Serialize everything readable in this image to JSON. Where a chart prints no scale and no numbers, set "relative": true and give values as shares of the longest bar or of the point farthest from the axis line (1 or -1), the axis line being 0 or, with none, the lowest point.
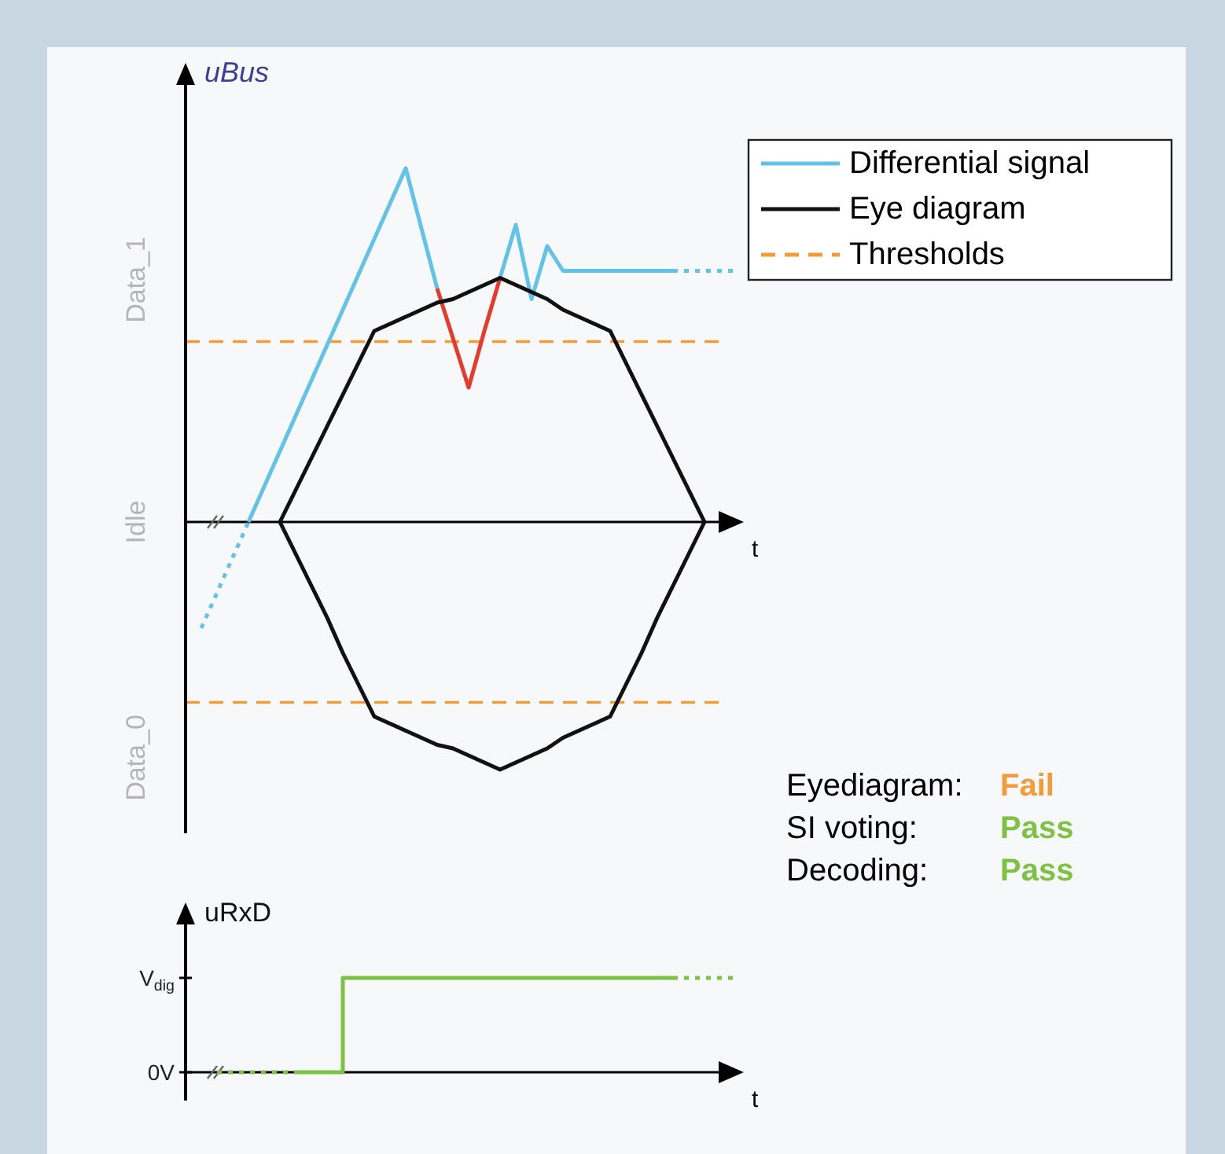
{
  "chart_data": [
    {
      "type": "line",
      "relative": true,
      "ylabel": "uBus",
      "xlabel": "t",
      "legend": "top right",
      "categories": [
        null,
        null,
        null,
        null,
        null,
        null,
        null,
        null,
        null,
        null,
        null,
        null,
        null,
        null,
        null,
        null,
        null,
        null,
        null,
        null,
        null,
        null,
        null,
        null,
        null,
        null,
        null,
        null,
        null,
        null,
        null,
        null,
        null,
        null,
        null,
        null
      ],
      "series": [
        {
          "color": "#62c3ea",
          "line_style": "dotted",
          "values": [
            null,
            -0.3,
            -0.2,
            -0.1,
            0,
            null,
            null,
            null,
            null,
            null,
            null,
            null,
            null,
            null,
            null,
            null,
            null,
            null,
            null,
            null,
            null,
            null,
            null,
            null,
            null,
            null,
            null,
            null,
            null,
            null,
            null,
            null,
            null,
            null,
            null,
            null
          ]
        },
        {
          "name": "Differential signal",
          "color": "#62c3ea",
          "values": [
            null,
            null,
            null,
            null,
            0,
            0.1,
            0.2,
            0.3,
            0.4,
            0.5,
            0.6,
            0.7,
            0.8,
            0.9,
            1,
            0.83,
            0.66,
            null,
            null,
            null,
            null,
            null,
            null,
            null,
            null,
            null,
            null,
            null,
            null,
            null,
            null,
            null,
            null,
            null,
            null,
            null
          ]
        },
        {
          "color": "#e8392b",
          "values": [
            null,
            null,
            null,
            null,
            null,
            null,
            null,
            null,
            null,
            null,
            null,
            null,
            null,
            null,
            null,
            null,
            0.66,
            0.52,
            0.38,
            0.54,
            0.69,
            null,
            null,
            null,
            null,
            null,
            null,
            null,
            null,
            null,
            null,
            null,
            null,
            null,
            null,
            null
          ]
        },
        {
          "color": "#62c3ea",
          "values": [
            null,
            null,
            null,
            null,
            null,
            null,
            null,
            null,
            null,
            null,
            null,
            null,
            null,
            null,
            null,
            null,
            null,
            null,
            null,
            null,
            0.69,
            0.84,
            0.63,
            0.78,
            0.71,
            0.71,
            0.71,
            0.71,
            0.71,
            0.71,
            0.71,
            0.71,
            null,
            null,
            null,
            null
          ]
        },
        {
          "color": "#62c3ea",
          "line_style": "dotted",
          "values": [
            null,
            null,
            null,
            null,
            null,
            null,
            null,
            null,
            null,
            null,
            null,
            null,
            null,
            null,
            null,
            null,
            null,
            null,
            null,
            null,
            null,
            null,
            null,
            null,
            null,
            null,
            null,
            null,
            null,
            null,
            null,
            0.71,
            0.71,
            0.71,
            0.71,
            0.71
          ]
        },
        {
          "name": "Eye diagram",
          "color": "#111111",
          "values": [
            null,
            null,
            null,
            null,
            null,
            null,
            0,
            0.09,
            0.18,
            0.27,
            0.36,
            0.45,
            0.54,
            0.56,
            0.58,
            0.6,
            0.62,
            0.63,
            0.65,
            0.67,
            0.69,
            0.67,
            0.65,
            0.63,
            0.6,
            0.58,
            0.56,
            0.54,
            0.45,
            0.36,
            0.27,
            0.18,
            0.09,
            0,
            null,
            null
          ]
        },
        {
          "color": "#111111",
          "values": [
            null,
            null,
            null,
            null,
            null,
            null,
            0,
            -0.09,
            -0.18,
            -0.27,
            -0.37,
            -0.46,
            -0.55,
            -0.57,
            -0.59,
            -0.61,
            -0.63,
            -0.64,
            -0.66,
            -0.68,
            -0.7,
            -0.68,
            -0.66,
            -0.64,
            -0.61,
            -0.59,
            -0.57,
            -0.55,
            -0.46,
            -0.37,
            -0.27,
            -0.18,
            -0.09,
            0,
            null,
            null
          ]
        }
      ],
      "ref_lines": [
        {
          "axis": "y",
          "value": 0.51,
          "label": "Thresholds",
          "color": "#f29b38",
          "line_style": "dashed"
        },
        {
          "axis": "y",
          "value": -0.51,
          "color": "#f29b38",
          "line_style": "dashed"
        }
      ],
      "annotations": [
        "Data_1",
        "Idle",
        "Data_0"
      ]
    },
    {
      "type": "line",
      "relative": true,
      "ylabel": "uRxD",
      "xlabel": "t",
      "categories": [
        null,
        null,
        null,
        null,
        null,
        null,
        null,
        null,
        null,
        null,
        null,
        null,
        null,
        null,
        null,
        null,
        null,
        null,
        null,
        null,
        null,
        null,
        null,
        null,
        null,
        null,
        null,
        null,
        null,
        null,
        null,
        null,
        null,
        null,
        null,
        null
      ],
      "series": [
        {
          "color": "#7dc242",
          "line_style": "dotted",
          "values": [
            null,
            null,
            0,
            0,
            0,
            0,
            0,
            0,
            null,
            null,
            null,
            null,
            null,
            null,
            null,
            null,
            null,
            null,
            null,
            null,
            null,
            null,
            null,
            null,
            null,
            null,
            null,
            null,
            null,
            null,
            null,
            null,
            null,
            null,
            null,
            null
          ]
        },
        {
          "type": "step",
          "color": "#7dc242",
          "values": [
            null,
            null,
            null,
            null,
            null,
            null,
            null,
            0,
            0,
            0,
            1,
            1,
            1,
            1,
            1,
            1,
            1,
            1,
            1,
            1,
            1,
            1,
            1,
            1,
            1,
            1,
            1,
            1,
            1,
            1,
            1,
            1,
            null,
            null,
            null,
            null
          ]
        },
        {
          "color": "#7dc242",
          "line_style": "dotted",
          "values": [
            null,
            null,
            null,
            null,
            null,
            null,
            null,
            null,
            null,
            null,
            null,
            null,
            null,
            null,
            null,
            null,
            null,
            null,
            null,
            null,
            null,
            null,
            null,
            null,
            null,
            null,
            null,
            null,
            null,
            null,
            null,
            1,
            1,
            1,
            1,
            1
          ]
        }
      ],
      "annotations": [
        "V$_{dig}$",
        "0V"
      ]
    },
    {
      "type": "other",
      "annotations": [
        "Eyediagram: Fail",
        "SI voting: Pass",
        "Decoding: Pass"
      ],
      "colors": [
        "#f29b38",
        "#7dc242",
        "#7dc242"
      ]
    }
  ]
}
